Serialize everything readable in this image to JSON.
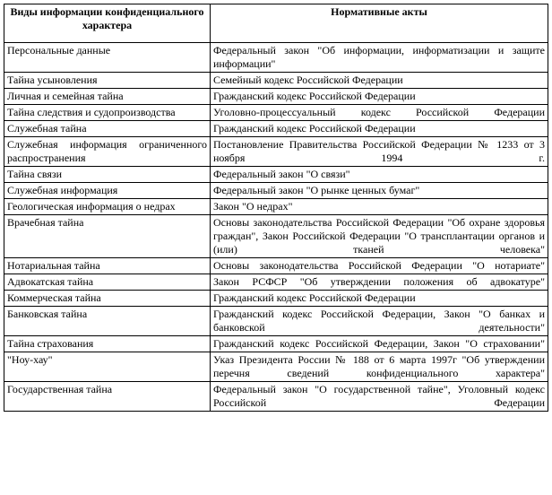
{
  "table": {
    "headers": {
      "col1": "Виды информации конфиденциального характера",
      "col2": "Нормативные акты"
    },
    "rows": [
      {
        "type": "Персональные данные",
        "act": "Федеральный закон \"Об информации, информатизации и защите информации\"",
        "leftJustify": false,
        "rightJustify": true
      },
      {
        "type": "Тайна усыновления",
        "act": "Семейный кодекс Российской Федерации",
        "leftJustify": false,
        "rightJustify": false
      },
      {
        "type": "Личная и семейная тайна",
        "act": "Гражданский кодекс Российской Федерации",
        "leftJustify": false,
        "rightJustify": false
      },
      {
        "type": "Тайна следствия и судопроизводства",
        "act": "Уголовно-процессуальный кодекс Российской Федерации",
        "leftJustify": false,
        "rightJustify": true
      },
      {
        "type": "Служебная тайна",
        "act": "Гражданский кодекс Российской Федерации",
        "leftJustify": false,
        "rightJustify": false
      },
      {
        "type": "Служебная информация огра­ниченного распространения",
        "act": "Постановление Правительства Российской Федерации № 1233 от 3 ноября 1994 г.",
        "leftJustify": true,
        "rightJustify": true
      },
      {
        "type": "Тайна связи",
        "act": "Федеральный закон \"О связи\"",
        "leftJustify": false,
        "rightJustify": false
      },
      {
        "type": "Служебная информация",
        "act": "Федеральный закон \"О рынке ценных бумаг\"",
        "leftJustify": false,
        "rightJustify": false
      },
      {
        "type": "Геологическая информация о недрах",
        "act": "Закон \"О недрах\"",
        "leftJustify": false,
        "rightJustify": false
      },
      {
        "type": "Врачебная тайна",
        "act": "Основы законодательства Российской Федерации \"Об охране здоровья граждан\", Закон Российской Федерации \"О трансплантации органов и (или) тканей человека\"",
        "leftJustify": false,
        "rightJustify": true
      },
      {
        "type": "Нотариальная тайна",
        "act": "Основы законодательства Российской Федерации \"О нотариате\"",
        "leftJustify": false,
        "rightJustify": true
      },
      {
        "type": "Адвокатская тайна",
        "act": "Закон РСФСР \"Об утверждении положения об адвокатуре\"",
        "leftJustify": false,
        "rightJustify": true
      },
      {
        "type": "Коммерческая тайна",
        "act": "Гражданский кодекс Российской Федерации",
        "leftJustify": false,
        "rightJustify": false
      },
      {
        "type": "Банковская тайна",
        "act": "Гражданский кодекс Российской Федерации, Закон \"О банках и банковской деятельности\"",
        "leftJustify": false,
        "rightJustify": true
      },
      {
        "type": "Тайна страхования",
        "act": "Гражданский кодекс Российской Федерации, Закон \"О страховании\"",
        "leftJustify": false,
        "rightJustify": true
      },
      {
        "type": "\"Ноу-хау\"",
        "act": "Указ Президента России № 188 от 6 марта 1997г \"Об утверждении перечня сведений конфиденциального характера\"",
        "leftJustify": false,
        "rightJustify": true
      },
      {
        "type": "Государственная тайна",
        "act": "Федеральный закон \"О государственной тайне\", Уголовный кодекс Российской Федерации",
        "leftJustify": false,
        "rightJustify": true
      }
    ]
  }
}
